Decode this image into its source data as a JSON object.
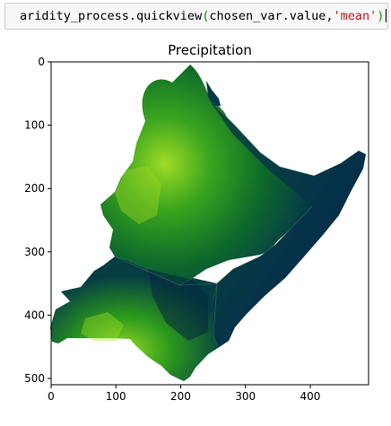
{
  "cell": {
    "fn": "aridity_process.quickview",
    "open_paren": "(",
    "arg1": "chosen_var.value,",
    "arg2": "'mean'",
    "close_paren": ")"
  },
  "chart_data": {
    "type": "heatmap",
    "title": "Precipitation",
    "xlabel": "",
    "ylabel": "",
    "x_ticks": [
      0,
      100,
      200,
      300,
      400
    ],
    "y_ticks": [
      0,
      100,
      200,
      300,
      400,
      500
    ],
    "xlim": [
      0,
      490
    ],
    "ylim": [
      510,
      0
    ],
    "colormap": "ocean-green (light green = low, dark navy = high)",
    "colors": {
      "low": "#7ccf1e",
      "mid": "#1c8a1c",
      "high": "#032a40"
    }
  }
}
